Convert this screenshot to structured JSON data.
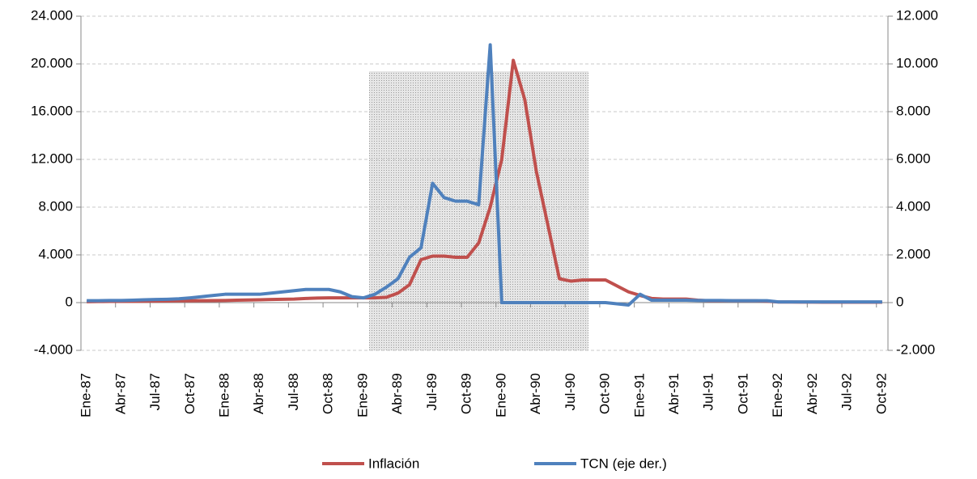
{
  "chart_data": {
    "type": "line",
    "categories": [
      "Ene-87",
      null,
      null,
      "Abr-87",
      null,
      null,
      "Jul-87",
      null,
      null,
      "Oct-87",
      null,
      null,
      "Ene-88",
      null,
      null,
      "Abr-88",
      null,
      null,
      "Jul-88",
      null,
      null,
      "Oct-88",
      null,
      null,
      "Ene-89",
      null,
      null,
      "Abr-89",
      null,
      null,
      "Jul-89",
      null,
      null,
      "Oct-89",
      null,
      null,
      "Ene-90",
      null,
      null,
      "Abr-90",
      null,
      null,
      "Jul-90",
      null,
      null,
      "Oct-90",
      null,
      null,
      "Ene-91",
      null,
      null,
      "Abr-91",
      null,
      null,
      "Jul-91",
      null,
      null,
      "Oct-91",
      null,
      null,
      "Ene-92",
      null,
      null,
      "Abr-92",
      null,
      null,
      "Jul-92",
      null,
      null,
      "Oct-92"
    ],
    "series": [
      {
        "name": "Inflación",
        "color": "#c0504d",
        "values": [
          80,
          90,
          100,
          100,
          110,
          120,
          130,
          140,
          150,
          150,
          160,
          170,
          180,
          200,
          220,
          240,
          260,
          280,
          300,
          350,
          380,
          400,
          400,
          400,
          400,
          400,
          450,
          800,
          1500,
          3600,
          3900,
          3900,
          3800,
          3800,
          5000,
          8000,
          12000,
          20300,
          17000,
          11000,
          6500,
          2000,
          1800,
          1900,
          1900,
          1900,
          1400,
          900,
          600,
          350,
          300,
          300,
          300,
          200,
          150,
          150,
          150,
          150,
          150,
          120,
          50,
          50,
          40,
          40,
          30,
          30,
          30,
          30,
          30,
          30
        ]
      },
      {
        "name": "TCN (eje der.)",
        "color": "#4f81bd",
        "axis": "y2",
        "values": [
          80,
          80,
          90,
          90,
          100,
          120,
          130,
          140,
          160,
          200,
          250,
          300,
          350,
          350,
          350,
          350,
          400,
          450,
          500,
          550,
          550,
          550,
          450,
          250,
          200,
          350,
          650,
          1000,
          1900,
          2300,
          5000,
          4400,
          4250,
          4250,
          4100,
          10800,
          0,
          0,
          0,
          0,
          0,
          0,
          0,
          0,
          0,
          0,
          -50,
          -100,
          350,
          100,
          100,
          100,
          100,
          90,
          90,
          90,
          80,
          80,
          80,
          80,
          30,
          30,
          30,
          30,
          30,
          30,
          30,
          30,
          30,
          30
        ]
      }
    ],
    "ylim": [
      -4000,
      24000
    ],
    "yticks": [
      {
        "value": -4000,
        "label": "-4.000"
      },
      0,
      {
        "value": 4000,
        "label": "4.000"
      },
      {
        "value": 8000,
        "label": "8.000"
      },
      {
        "value": 12000,
        "label": "12.000"
      },
      {
        "value": 16000,
        "label": "16.000"
      },
      {
        "value": 20000,
        "label": "20.000"
      },
      {
        "value": 24000,
        "label": "24.000"
      }
    ],
    "y2lim": [
      -2000,
      12000
    ],
    "y2ticks": [
      {
        "value": -2000,
        "label": "-2.000"
      },
      0,
      {
        "value": 2000,
        "label": "2.000"
      },
      {
        "value": 4000,
        "label": "4.000"
      },
      {
        "value": 6000,
        "label": "6.000"
      },
      {
        "value": 8000,
        "label": "8.000"
      },
      {
        "value": 10000,
        "label": "10.000"
      },
      {
        "value": 12000,
        "label": "12.000"
      }
    ],
    "grid": true,
    "legend": "bottom"
  }
}
